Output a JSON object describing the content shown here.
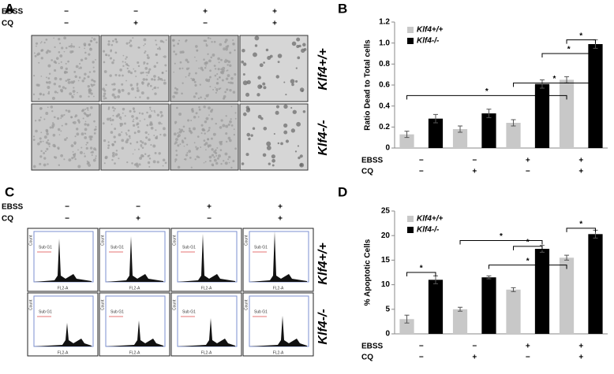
{
  "panel_labels": [
    "A",
    "B",
    "C",
    "D"
  ],
  "treatment_rows": [
    {
      "label": "EBSS",
      "values": [
        "−",
        "−",
        "+",
        "+"
      ]
    },
    {
      "label": "CQ",
      "values": [
        "−",
        "+",
        "−",
        "+"
      ]
    }
  ],
  "genotypes": [
    "Klf4+/+",
    "Klf4-/-"
  ],
  "flow_labels": {
    "gate": "Sub G1",
    "y_axis": "Count",
    "x_axis": "FL2-A"
  },
  "chart_data": [
    {
      "type": "bar",
      "ylabel": "Ratio Dead to Total cells",
      "annotation": "*",
      "ylim": [
        0,
        1.2
      ],
      "yticks": [
        0,
        0.2,
        0.4,
        0.6,
        0.8,
        {
          "value": 1.0,
          "label": "1.0"
        },
        {
          "value": 1.2,
          "label": "1.2"
        }
      ],
      "legend": "top-left",
      "series": [
        {
          "name": "Klf4+/+",
          "color": "#c8c8c8",
          "values": [
            0.13,
            0.18,
            0.24,
            0.65
          ],
          "errors": [
            0.03,
            0.03,
            0.03,
            0.03
          ]
        },
        {
          "name": "Klf4-/-",
          "color": "#000000",
          "values": [
            0.28,
            0.33,
            0.61,
            0.99
          ],
          "errors": [
            0.04,
            0.04,
            0.04,
            0.04
          ]
        }
      ]
    },
    {
      "type": "bar",
      "ylabel": "% Apoptotic Cells",
      "annotation": "*",
      "ylim": [
        0,
        25
      ],
      "yticks": [
        0,
        5,
        10,
        15,
        20,
        25
      ],
      "legend": "top-left",
      "series": [
        {
          "name": "Klf4+/+",
          "color": "#c8c8c8",
          "values": [
            3,
            5,
            9,
            15.5
          ],
          "errors": [
            0.8,
            0.4,
            0.4,
            0.5
          ]
        },
        {
          "name": "Klf4-/-",
          "color": "#000000",
          "values": [
            11,
            11.5,
            17.3,
            20.3
          ],
          "errors": [
            0.8,
            0.3,
            0.7,
            0.8
          ]
        }
      ]
    }
  ]
}
